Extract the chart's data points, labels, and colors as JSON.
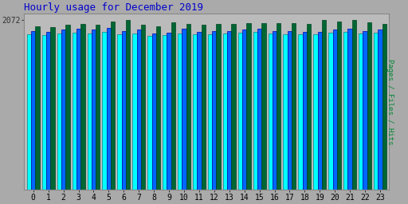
{
  "title": "Hourly usage for December 2019",
  "title_color": "#0000cc",
  "title_fontsize": 9,
  "hours": [
    0,
    1,
    2,
    3,
    4,
    5,
    6,
    7,
    8,
    9,
    10,
    11,
    12,
    13,
    14,
    15,
    16,
    17,
    18,
    19,
    20,
    21,
    22,
    23
  ],
  "pages": [
    1900,
    1890,
    1910,
    1920,
    1910,
    1930,
    1900,
    1910,
    1880,
    1890,
    1910,
    1900,
    1900,
    1910,
    1920,
    1930,
    1910,
    1900,
    1900,
    1900,
    1920,
    1930,
    1910,
    1920
  ],
  "files": [
    1940,
    1930,
    1950,
    1960,
    1950,
    1970,
    1940,
    1950,
    1910,
    1920,
    1960,
    1930,
    1940,
    1940,
    1950,
    1960,
    1940,
    1940,
    1930,
    1930,
    1950,
    1960,
    1940,
    1950
  ],
  "hits": [
    1990,
    1980,
    2010,
    2020,
    2010,
    2050,
    2072,
    2010,
    1990,
    2040,
    2020,
    2010,
    2020,
    2020,
    2030,
    2030,
    2030,
    2030,
    2020,
    2072,
    2050,
    2072,
    2040,
    2020
  ],
  "ylim_min": 1700,
  "ylim_max": 2150,
  "ytick_value": 2072,
  "ytick_label": "2072",
  "bar_width": 0.28,
  "color_pages": "#00ffff",
  "color_files": "#0066ff",
  "color_hits": "#006633",
  "color_pages_edge": "#008888",
  "color_files_edge": "#0000aa",
  "color_hits_edge": "#004422",
  "ylabel_right": "Pages / Files / Hits",
  "ylabel_right_color": "#008833",
  "bg_color": "#aaaaaa",
  "axis_bg_color": "#bbbbbb",
  "border_color": "#888888"
}
